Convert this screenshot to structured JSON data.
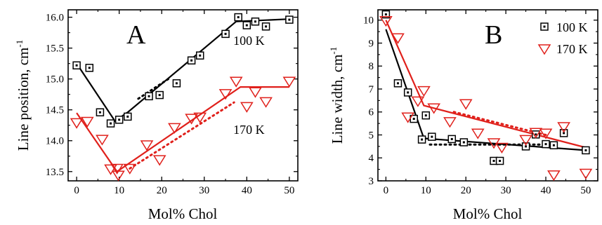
{
  "colors": {
    "black": "#000000",
    "red": "#e0201b"
  },
  "chart_data": [
    {
      "type": "scatter",
      "panel_label": "A",
      "xlabel": "Mol% Chol",
      "ylabel": "Line position, cm",
      "ylabel_sup": "-1",
      "xlim": [
        -2,
        52
      ],
      "ylim": [
        13.35,
        16.12
      ],
      "xticks": [
        0,
        10,
        20,
        30,
        40,
        50
      ],
      "yticks": [
        13.5,
        14.0,
        14.5,
        15.0,
        15.5,
        16.0
      ],
      "xtick_labels": [
        "0",
        "10",
        "20",
        "30",
        "40",
        "50"
      ],
      "ytick_labels": [
        "13.5",
        "14.0",
        "14.5",
        "15.0",
        "15.5",
        "16.0"
      ],
      "annotations": [
        {
          "text": "100 K",
          "x": 40.5,
          "y": 15.62
        },
        {
          "text": "170 K",
          "x": 40.5,
          "y": 14.18
        }
      ],
      "series": [
        {
          "color": "#000000",
          "marker": "square",
          "points": [
            [
              0,
              15.22
            ],
            [
              3,
              15.18
            ],
            [
              5.5,
              14.46
            ],
            [
              8,
              14.28
            ],
            [
              10,
              14.34
            ],
            [
              12,
              14.39
            ],
            [
              17,
              14.72
            ],
            [
              19.5,
              14.74
            ],
            [
              23.5,
              14.93
            ],
            [
              27,
              15.3
            ],
            [
              29,
              15.38
            ],
            [
              35,
              15.73
            ],
            [
              38,
              16.0
            ],
            [
              40,
              15.87
            ],
            [
              42,
              15.93
            ],
            [
              44.5,
              15.85
            ],
            [
              50,
              15.96
            ]
          ],
          "fit_solid": [
            [
              0,
              15.25
            ],
            [
              9,
              14.32
            ],
            [
              12,
              14.46
            ],
            [
              37.5,
              15.93
            ],
            [
              50,
              15.97
            ]
          ],
          "fit_dotted": [
            [
              14.5,
              14.68
            ],
            [
              22,
              15.02
            ]
          ]
        },
        {
          "color": "#e0201b",
          "marker": "triangle-down",
          "points": [
            [
              0,
              14.3
            ],
            [
              2.5,
              14.32
            ],
            [
              6,
              14.03
            ],
            [
              8,
              13.55
            ],
            [
              9.5,
              13.56
            ],
            [
              9.8,
              13.45
            ],
            [
              12.5,
              13.56
            ],
            [
              16.5,
              13.94
            ],
            [
              19.5,
              13.7
            ],
            [
              23,
              14.22
            ],
            [
              27,
              14.37
            ],
            [
              29,
              14.39
            ],
            [
              35,
              14.77
            ],
            [
              37.5,
              14.97
            ],
            [
              40,
              14.56
            ],
            [
              42,
              14.8
            ],
            [
              44.5,
              14.64
            ],
            [
              50,
              14.97
            ]
          ],
          "fit_solid": [
            [
              0,
              14.45
            ],
            [
              9.5,
              13.5
            ],
            [
              38.5,
              14.87
            ],
            [
              50,
              14.87
            ]
          ],
          "fit_dotted": [
            [
              12.5,
              13.55
            ],
            [
              37,
              14.62
            ]
          ]
        }
      ]
    },
    {
      "type": "scatter",
      "panel_label": "B",
      "xlabel": "Mol% Chol",
      "ylabel": "Line width, cm",
      "ylabel_sup": "-1",
      "xlim": [
        -2,
        53
      ],
      "ylim": [
        3,
        10.45
      ],
      "xticks": [
        0,
        10,
        20,
        30,
        40,
        50
      ],
      "yticks": [
        3,
        4,
        5,
        6,
        7,
        8,
        9,
        10
      ],
      "xtick_labels": [
        "0",
        "10",
        "20",
        "30",
        "40",
        "50"
      ],
      "ytick_labels": [
        "3",
        "4",
        "5",
        "6",
        "7",
        "8",
        "9",
        "10"
      ],
      "legend": {
        "position": "top-right",
        "entries": [
          "100 K",
          "170 K"
        ]
      },
      "series": [
        {
          "name": "100 K",
          "color": "#000000",
          "marker": "square",
          "points": [
            [
              0,
              10.25
            ],
            [
              3,
              7.25
            ],
            [
              5.5,
              6.85
            ],
            [
              7,
              5.7
            ],
            [
              9,
              4.8
            ],
            [
              10,
              5.85
            ],
            [
              11.5,
              4.92
            ],
            [
              16.5,
              4.82
            ],
            [
              19.5,
              4.68
            ],
            [
              27,
              3.87
            ],
            [
              28.5,
              3.87
            ],
            [
              35,
              4.5
            ],
            [
              37.5,
              5.02
            ],
            [
              40,
              4.6
            ],
            [
              42,
              4.55
            ],
            [
              44.5,
              5.08
            ],
            [
              50,
              4.33
            ]
          ],
          "fit_solid": [
            [
              0,
              9.6
            ],
            [
              9.5,
              4.85
            ],
            [
              50,
              4.33
            ]
          ],
          "fit_dotted": [
            [
              11,
              4.58
            ],
            [
              42,
              4.58
            ]
          ]
        },
        {
          "name": "170 K",
          "color": "#e0201b",
          "marker": "triangle-down",
          "points": [
            [
              0,
              10.0
            ],
            [
              3,
              9.25
            ],
            [
              5.5,
              5.8
            ],
            [
              8,
              6.5
            ],
            [
              9.5,
              6.95
            ],
            [
              12,
              6.2
            ],
            [
              16,
              5.6
            ],
            [
              20,
              6.38
            ],
            [
              23,
              5.1
            ],
            [
              27,
              4.68
            ],
            [
              29,
              4.48
            ],
            [
              35,
              4.82
            ],
            [
              37.5,
              5.13
            ],
            [
              40,
              5.1
            ],
            [
              42,
              3.28
            ],
            [
              44.5,
              5.38
            ],
            [
              50,
              3.35
            ]
          ],
          "fit_solid": [
            [
              0,
              10.0
            ],
            [
              9.5,
              6.28
            ],
            [
              50,
              4.45
            ]
          ],
          "fit_dotted": [
            [
              17,
              6.0
            ],
            [
              40,
              5.0
            ]
          ]
        }
      ]
    }
  ]
}
